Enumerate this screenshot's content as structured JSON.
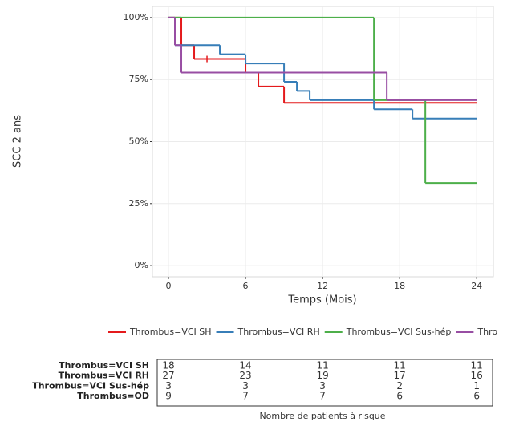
{
  "chart_data": {
    "type": "step",
    "ylabel": "SCC 2 ans",
    "xlabel": "Temps (Mois)",
    "xlim": [
      -1.25,
      25.3
    ],
    "xticks": [
      0,
      6,
      12,
      18,
      24
    ],
    "ylim": [
      -4.5,
      104.5
    ],
    "yticks": [
      {
        "value": 0,
        "label": "0%"
      },
      {
        "value": 25,
        "label": "25%"
      },
      {
        "value": 50,
        "label": "50%"
      },
      {
        "value": 75,
        "label": "75%"
      },
      {
        "value": 100,
        "label": "100%"
      }
    ],
    "grid": true,
    "series": [
      {
        "name": "Thrombus=VCI SH",
        "color": "#e41a1c",
        "x": [
          0,
          1,
          2,
          6,
          7,
          9,
          24
        ],
        "values": [
          100,
          88.9,
          83.3,
          77.8,
          72.2,
          65.6,
          65.6
        ],
        "censor_x": [
          3
        ],
        "censor_values": [
          83.3
        ]
      },
      {
        "name": "Thrombus=VCI RH",
        "color": "#377eb8",
        "x": [
          0,
          0.5,
          4,
          6,
          9,
          10,
          11,
          16,
          19,
          24
        ],
        "values": [
          100,
          88.9,
          85.2,
          81.5,
          74.1,
          70.4,
          66.7,
          63,
          59.3,
          59.3
        ]
      },
      {
        "name": "Thrombus=VCI Sus-hép",
        "color": "#4daf4a",
        "x": [
          0,
          16,
          20,
          24
        ],
        "values": [
          100,
          66.7,
          33.3,
          33.3
        ]
      },
      {
        "name": "Thrombus=OD",
        "color": "#984ea3",
        "x": [
          0,
          0.5,
          1,
          17,
          24
        ],
        "values": [
          100,
          88.9,
          77.8,
          66.7,
          66.7
        ]
      }
    ],
    "risk_table": {
      "title": "Nombre de patients à risque",
      "rows": [
        {
          "label": "Thrombus=VCI SH",
          "counts": [
            18,
            14,
            11,
            11,
            11
          ]
        },
        {
          "label": "Thrombus=VCI RH",
          "counts": [
            27,
            23,
            19,
            17,
            16
          ]
        },
        {
          "label": "Thrombus=VCI Sus-hép",
          "counts": [
            3,
            3,
            3,
            2,
            1
          ]
        },
        {
          "label": "Thrombus=OD",
          "counts": [
            9,
            7,
            7,
            6,
            6
          ]
        }
      ]
    }
  }
}
